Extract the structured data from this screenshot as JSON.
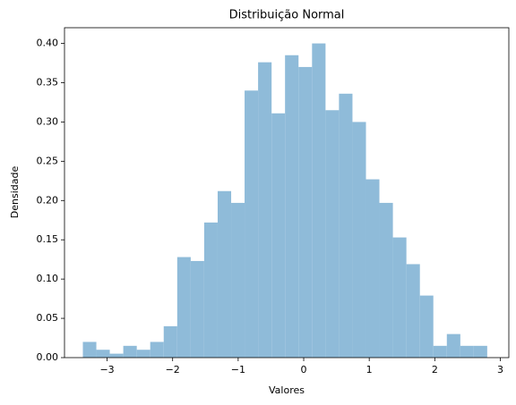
{
  "chart_data": {
    "type": "histogram",
    "title": "Distribuição Normal",
    "xlabel": "Valores",
    "ylabel": "Densidade",
    "bins": [
      -3.37,
      -3.164,
      -2.959,
      -2.753,
      -2.547,
      -2.342,
      -2.136,
      -1.93,
      -1.724,
      -1.519,
      -1.313,
      -1.107,
      -0.902,
      -0.696,
      -0.49,
      -0.285,
      -0.079,
      0.127,
      0.333,
      0.538,
      0.744,
      0.95,
      1.155,
      1.361,
      1.567,
      1.773,
      1.978,
      2.184,
      2.39,
      2.595,
      2.8
    ],
    "values": [
      0.02,
      0.01,
      0.005,
      0.015,
      0.01,
      0.02,
      0.04,
      0.128,
      0.123,
      0.172,
      0.212,
      0.197,
      0.34,
      0.376,
      0.311,
      0.385,
      0.37,
      0.4,
      0.315,
      0.336,
      0.3,
      0.227,
      0.197,
      0.153,
      0.119,
      0.079,
      0.015,
      0.03,
      0.015,
      0.015
    ],
    "color": "#8fbbd9",
    "xlim": [
      -3.65,
      3.13
    ],
    "ylim": [
      0,
      0.42
    ],
    "xticks": [
      {
        "value": -3,
        "label": "−3"
      },
      {
        "value": -2,
        "label": "−2"
      },
      {
        "value": -1,
        "label": "−1"
      },
      0,
      1,
      2,
      3
    ],
    "yticks": [
      {
        "value": 0,
        "label": "0.00"
      },
      {
        "value": 0.05,
        "label": "0.05"
      },
      {
        "value": 0.1,
        "label": "0.10"
      },
      {
        "value": 0.15,
        "label": "0.15"
      },
      {
        "value": 0.2,
        "label": "0.20"
      },
      {
        "value": 0.25,
        "label": "0.25"
      },
      {
        "value": 0.3,
        "label": "0.30"
      },
      {
        "value": 0.35,
        "label": "0.35"
      },
      {
        "value": 0.4,
        "label": "0.40"
      }
    ]
  }
}
